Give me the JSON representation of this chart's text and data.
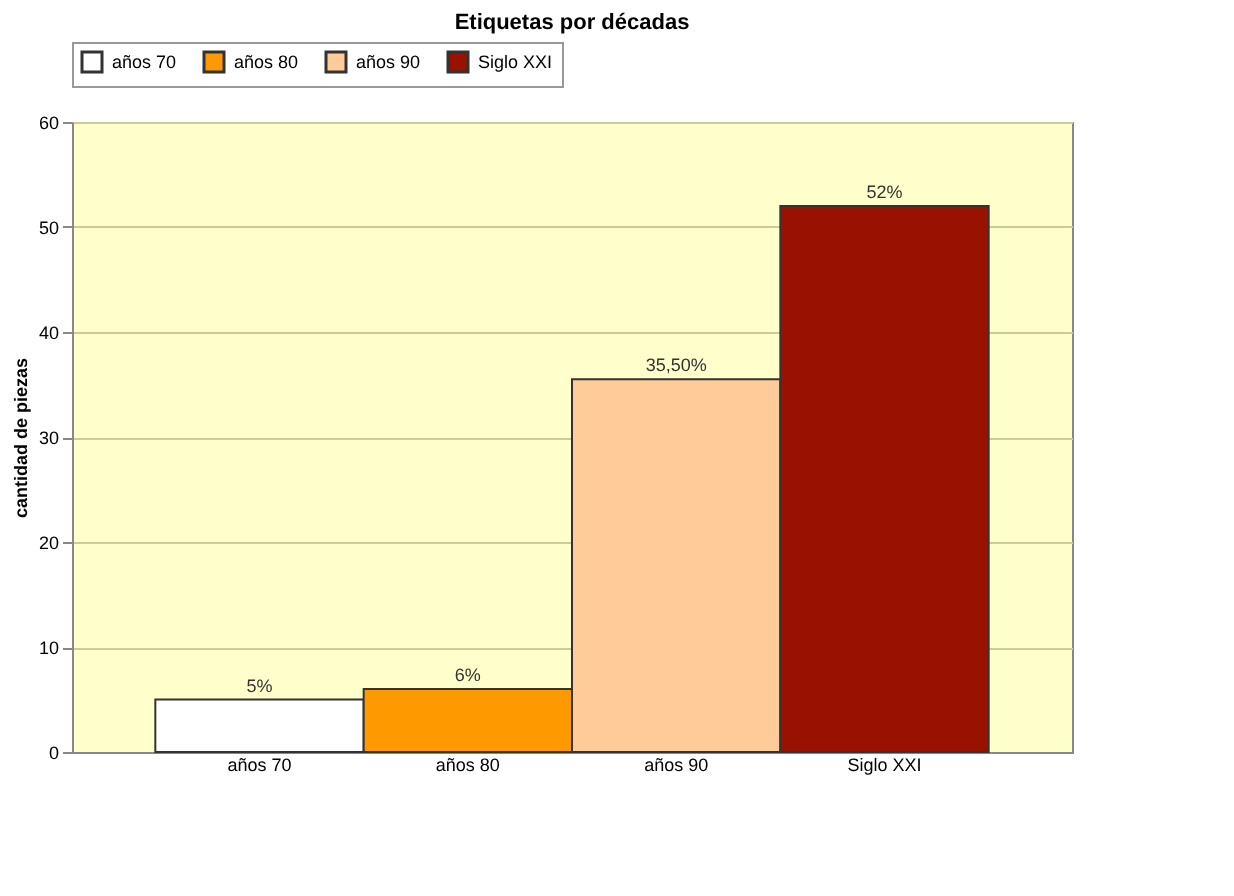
{
  "chart_data": {
    "type": "bar",
    "title": "Etiquetas por décadas",
    "ylabel": "cantidad de piezas",
    "categories": [
      "años 70",
      "años 80",
      "años 90",
      "Siglo XXI"
    ],
    "series": [
      {
        "name": "años 70",
        "color": "#ffffff",
        "values": [
          5,
          null,
          null,
          null
        ],
        "value_labels": [
          "5%",
          null,
          null,
          null
        ]
      },
      {
        "name": "años 80",
        "color": "#ff9900",
        "values": [
          null,
          6,
          null,
          null
        ],
        "value_labels": [
          null,
          "6%",
          null,
          null
        ]
      },
      {
        "name": "años 90",
        "color": "#ffcc99",
        "values": [
          null,
          null,
          35.5,
          null
        ],
        "value_labels": [
          null,
          null,
          "35,50%",
          null
        ]
      },
      {
        "name": "Siglo XXI",
        "color": "#991100",
        "values": [
          null,
          null,
          null,
          52
        ],
        "value_labels": [
          null,
          null,
          null,
          "52%"
        ]
      }
    ],
    "ylim": [
      0,
      60
    ],
    "yticks": [
      0,
      10,
      20,
      30,
      40,
      50,
      60
    ],
    "grid": "y",
    "legend": "top"
  }
}
